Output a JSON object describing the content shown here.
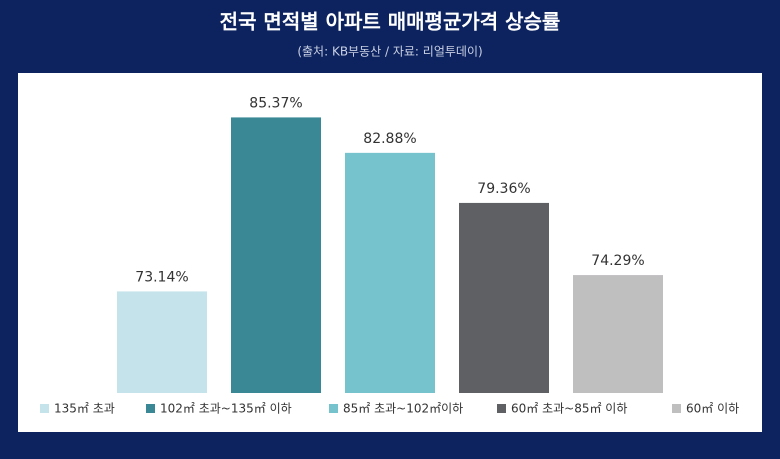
{
  "chart_data": {
    "type": "bar",
    "title": "전국 면적별 아파트 매매평균가격 상승률",
    "subtitle": "(출처: KB부동산 / 자료: 리얼투데이)",
    "categories": [
      "135㎡ 초과",
      "102㎡ 초과~135㎡ 이하",
      "85㎡ 초과~102㎡이하",
      "60㎡ 초과~85㎡ 이하",
      "60㎡ 이하"
    ],
    "values": [
      73.14,
      85.37,
      82.88,
      79.36,
      74.29
    ],
    "value_labels": [
      "73.14%",
      "85.37%",
      "82.88%",
      "79.36%",
      "74.29%"
    ],
    "colors": [
      "#c5e3ea",
      "#3a8896",
      "#76c3cd",
      "#5f6064",
      "#c0bfc0"
    ],
    "ylim": [
      66,
      88
    ]
  }
}
